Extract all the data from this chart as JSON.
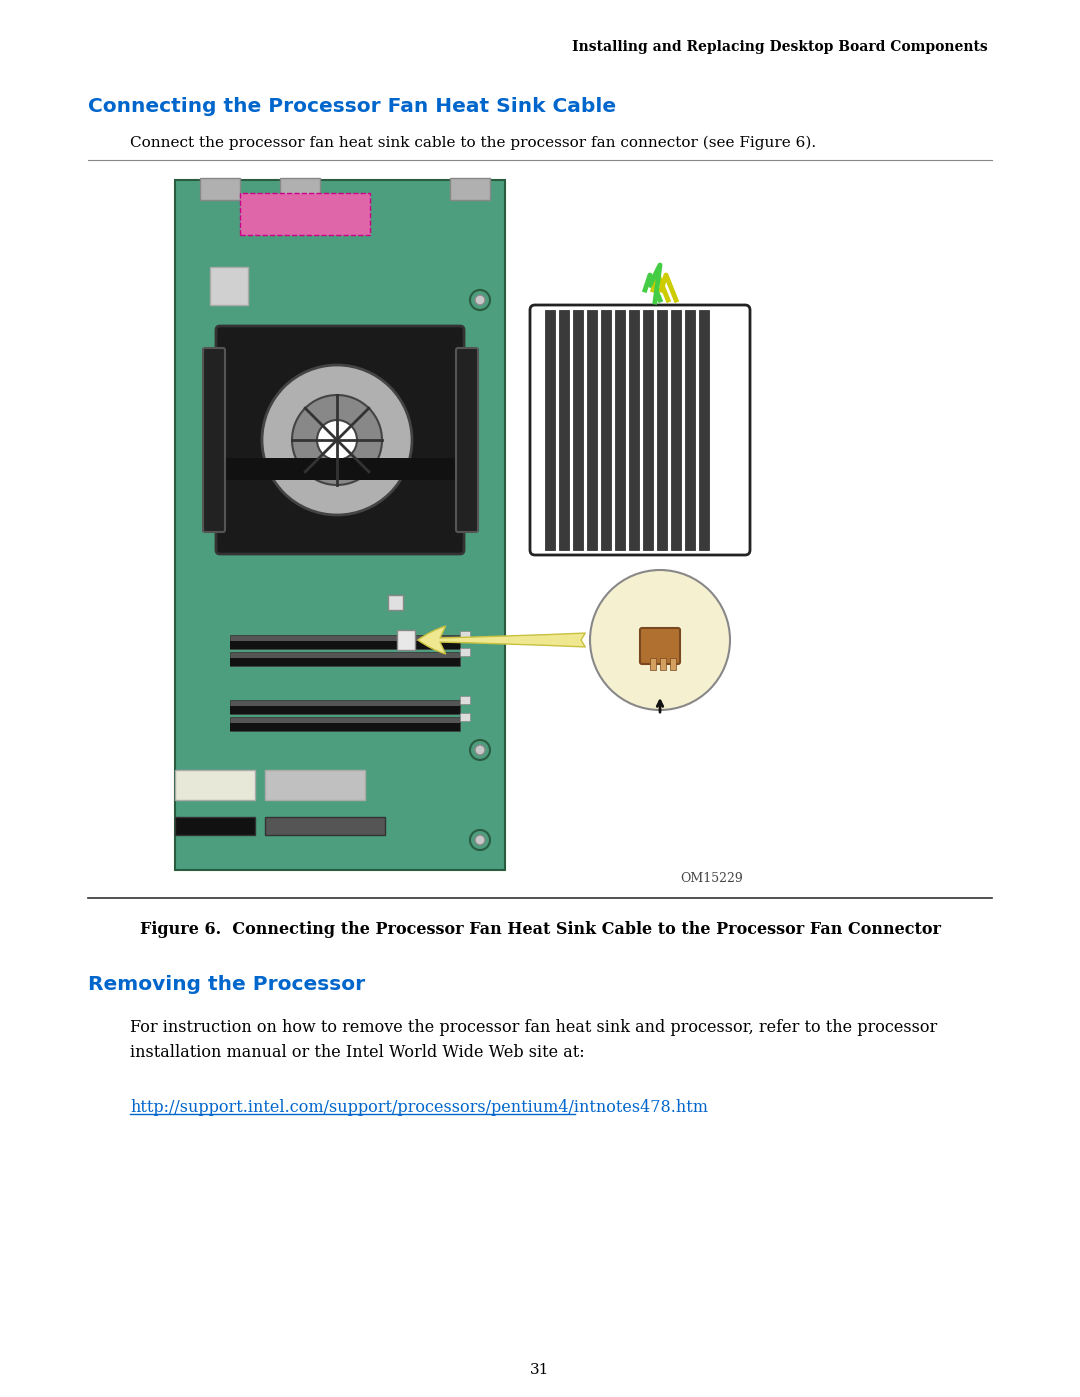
{
  "header_text": "Installing and Replacing Desktop Board Components",
  "section1_title": "Connecting the Processor Fan Heat Sink Cable",
  "section1_body": "Connect the processor fan heat sink cable to the processor fan connector (see Figure 6).",
  "figure_label": "OM15229",
  "figure_caption": "Figure 6.  Connecting the Processor Fan Heat Sink Cable to the Processor Fan Connector",
  "section2_title": "Removing the Processor",
  "section2_body1": "For instruction on how to remove the processor fan heat sink and processor, refer to the processor\ninstallation manual or the Intel World Wide Web site at:",
  "section2_link": "http://support.intel.com/support/processors/pentium4/intnotes478.htm",
  "page_number": "31",
  "bg_color": "#ffffff",
  "header_color": "#000000",
  "section_title_color": "#0066cc",
  "body_color": "#000000",
  "link_color": "#0066cc",
  "board_color": "#4d9e7e",
  "board_dark": "#3a7a60"
}
